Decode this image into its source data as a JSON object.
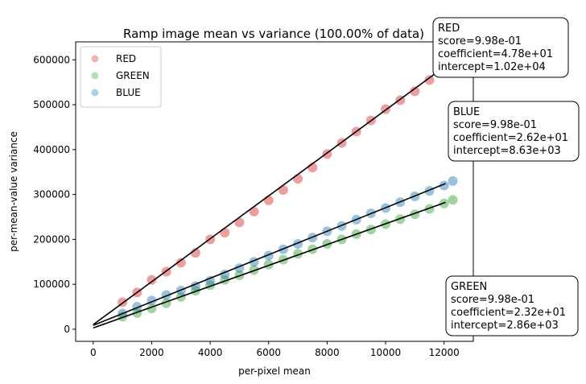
{
  "chart_data": {
    "type": "scatter",
    "title": "Ramp image mean vs variance (100.00% of data)",
    "xlabel": "per-pixel mean",
    "ylabel": "per-mean-value variance",
    "xlim": [
      -600,
      13000
    ],
    "ylim": [
      -27000,
      640000
    ],
    "x_ticks": [
      0,
      2000,
      4000,
      6000,
      8000,
      10000,
      12000
    ],
    "y_ticks": [
      0,
      100000,
      200000,
      300000,
      400000,
      500000,
      600000
    ],
    "grid": false,
    "legend_position": "top-left",
    "series": [
      {
        "name": "RED",
        "color": "#d62728",
        "points": [
          [
            1000,
            60000
          ],
          [
            1500,
            82000
          ],
          [
            2000,
            110000
          ],
          [
            2500,
            128000
          ],
          [
            3000,
            148000
          ],
          [
            3500,
            170000
          ],
          [
            4000,
            200000
          ],
          [
            4500,
            215000
          ],
          [
            5000,
            238000
          ],
          [
            5500,
            262000
          ],
          [
            6000,
            287000
          ],
          [
            6500,
            310000
          ],
          [
            7000,
            335000
          ],
          [
            7500,
            360000
          ],
          [
            8000,
            390000
          ],
          [
            8500,
            415000
          ],
          [
            9000,
            440000
          ],
          [
            9500,
            465000
          ],
          [
            10000,
            490000
          ],
          [
            10500,
            510000
          ],
          [
            11000,
            530000
          ],
          [
            11500,
            555000
          ],
          [
            12000,
            575000
          ]
        ],
        "fit": {
          "score": "9.98e-01",
          "coefficient": "4.78e+01",
          "intercept": "1.02e+04",
          "slope": 47.8,
          "b": 10200
        }
      },
      {
        "name": "GREEN",
        "color": "#2ca02c",
        "points": [
          [
            1000,
            28000
          ],
          [
            1500,
            36000
          ],
          [
            2000,
            46000
          ],
          [
            2500,
            58000
          ],
          [
            3000,
            72000
          ],
          [
            3500,
            86000
          ],
          [
            4000,
            98000
          ],
          [
            4500,
            110000
          ],
          [
            5000,
            120000
          ],
          [
            5500,
            132000
          ],
          [
            6000,
            144000
          ],
          [
            6500,
            155000
          ],
          [
            7000,
            168000
          ],
          [
            7500,
            178000
          ],
          [
            8000,
            190000
          ],
          [
            8500,
            200000
          ],
          [
            9000,
            212000
          ],
          [
            9500,
            222000
          ],
          [
            10000,
            234000
          ],
          [
            10500,
            245000
          ],
          [
            11000,
            256000
          ],
          [
            11500,
            268000
          ],
          [
            12000,
            280000
          ],
          [
            12300,
            288000
          ]
        ],
        "fit": {
          "score": "9.98e-01",
          "coefficient": "2.32e+01",
          "intercept": "2.86e+03",
          "slope": 23.2,
          "b": 2860
        }
      },
      {
        "name": "BLUE",
        "color": "#1f77b4",
        "points": [
          [
            1000,
            35000
          ],
          [
            1500,
            50000
          ],
          [
            2000,
            64000
          ],
          [
            2500,
            76000
          ],
          [
            3000,
            86000
          ],
          [
            3500,
            96000
          ],
          [
            4000,
            108000
          ],
          [
            4500,
            122000
          ],
          [
            5000,
            136000
          ],
          [
            5500,
            150000
          ],
          [
            6000,
            164000
          ],
          [
            6500,
            178000
          ],
          [
            7000,
            190000
          ],
          [
            7500,
            204000
          ],
          [
            8000,
            218000
          ],
          [
            8500,
            230000
          ],
          [
            9000,
            244000
          ],
          [
            9500,
            258000
          ],
          [
            10000,
            270000
          ],
          [
            10500,
            283000
          ],
          [
            11000,
            296000
          ],
          [
            11500,
            308000
          ],
          [
            12000,
            320000
          ],
          [
            12300,
            330000
          ]
        ],
        "fit": {
          "score": "9.98e-01",
          "coefficient": "2.62e+01",
          "intercept": "8.63e+03",
          "slope": 26.2,
          "b": 8630
        }
      }
    ],
    "annotations": [
      {
        "series": "RED",
        "lines": [
          "RED",
          "score=9.98e-01",
          "coefficient=4.78e+01",
          "intercept=1.02e+04"
        ]
      },
      {
        "series": "BLUE",
        "lines": [
          "BLUE",
          "score=9.98e-01",
          "coefficient=2.62e+01",
          "intercept=8.63e+03"
        ]
      },
      {
        "series": "GREEN",
        "lines": [
          "GREEN",
          "score=9.98e-01",
          "coefficient=2.32e+01",
          "intercept=2.86e+03"
        ]
      }
    ]
  }
}
